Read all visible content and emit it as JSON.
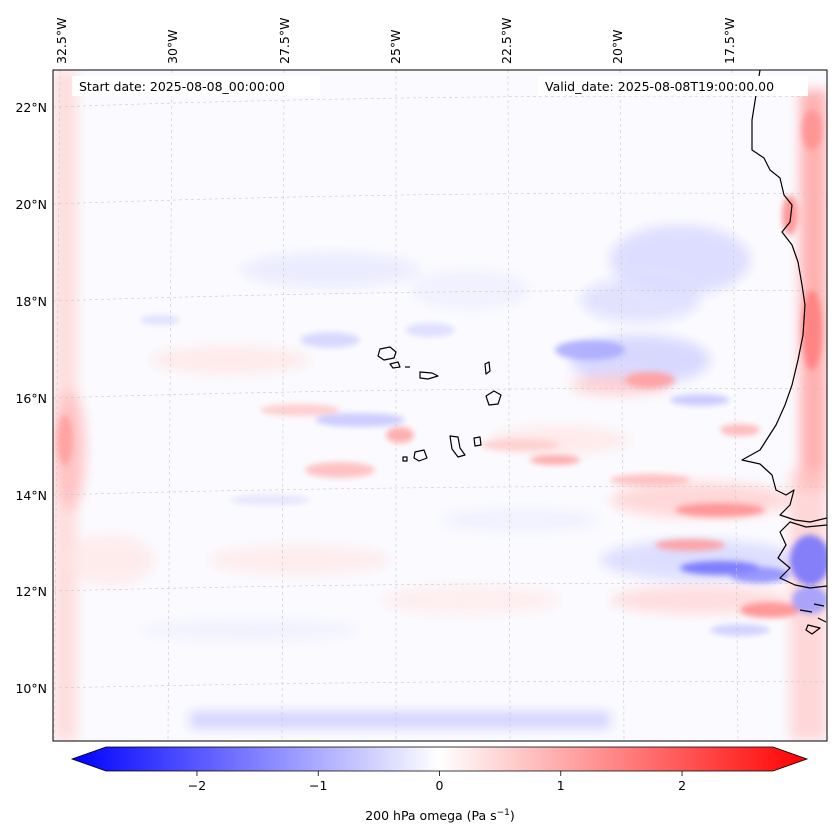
{
  "map": {
    "start_date": "Start date: 2025-08-08_00:00:00",
    "valid_date": "Valid_date: 2025-08-08T19:00:00.00",
    "lon_ticks": [
      "32.5°W",
      "30°W",
      "27.5°W",
      "25°W",
      "22.5°W",
      "20°W",
      "17.5°W"
    ],
    "lat_ticks": [
      "22°N",
      "20°N",
      "18°N",
      "16°N",
      "14°N",
      "12°N",
      "10°N"
    ],
    "variable": "200 hPa omega",
    "units": "Pa s⁻¹"
  },
  "colorbar": {
    "ticks": [
      "−2",
      "−1",
      "0",
      "1",
      "2"
    ],
    "tick_values": [
      -2,
      -1,
      0,
      1,
      2
    ],
    "range": [
      -2.75,
      2.75
    ],
    "colormap": "bwr",
    "extend": "both",
    "label_base": "200 hPa omega (Pa s",
    "label_sup": "−1",
    "label_close": ")"
  },
  "colors": {
    "negative": "#0000ff",
    "neutral": "#ffffff",
    "positive": "#ff0000",
    "coastline": "#000000",
    "gridline": "#c8c8c8"
  }
}
